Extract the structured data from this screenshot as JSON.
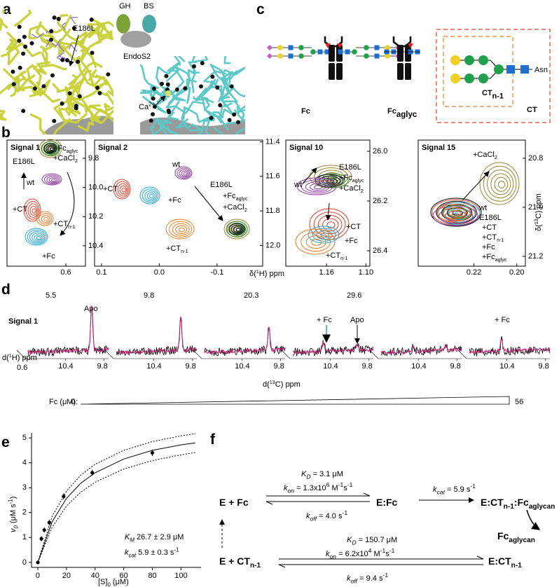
{
  "a": {
    "label": "a",
    "gh": "GH",
    "bs": "BS",
    "endos2": "EndoS2",
    "mutation": "E186L",
    "calcium": [
      {
        "t": "Ca"
      },
      {
        "t": "2+",
        "s": "sup"
      }
    ]
  },
  "b": {
    "label": "b",
    "x_axis_label": [
      {
        "t": "δ("
      },
      {
        "t": "1",
        "s": "sup"
      },
      {
        "t": "H) ppm"
      }
    ],
    "y_axis_label": [
      {
        "t": "δ("
      },
      {
        "t": "13",
        "s": "sup"
      },
      {
        "t": "C) ppm"
      }
    ],
    "spectra": [
      {
        "title": "Signal 1",
        "xlim": [
          0.72,
          0.56
        ],
        "ylim": [
          9.675,
          10.54
        ],
        "xticks": [
          0.6
        ],
        "yticks": [
          9.8,
          {
            "value": 10,
            "label": "10.0"
          },
          10.2,
          10.4
        ],
        "labels": [
          {
            "text": [
              {
                "t": "+Fc"
              },
              {
                "t": "aglyc",
                "s": "sub"
              }
            ],
            "color": "#2a9a3a"
          },
          {
            "text": [
              {
                "t": "+CaCl"
              },
              {
                "t": "2",
                "s": "sub"
              }
            ],
            "color": "#9a8530"
          },
          {
            "text": "E186L",
            "color": "#000000"
          },
          {
            "text": "wt",
            "color": "#8d3ea0"
          },
          {
            "text": "+CT",
            "color": "#e8402a"
          },
          {
            "text": [
              {
                "t": "+CT"
              },
              {
                "t": "n-1",
                "s": "sub"
              }
            ],
            "color": "#f07c22"
          },
          {
            "text": "+Fc",
            "color": "#1fa8d8"
          }
        ]
      },
      {
        "title": "Signal 2",
        "xlim": [
          0.112,
          -0.179
        ],
        "ylim": [
          11.39,
          12.12
        ],
        "xticks": [
          0.1,
          {
            "value": 0,
            "label": "0.0"
          },
          -0.1
        ],
        "yticks": [
          11.4,
          11.6,
          11.8,
          {
            "value": 12,
            "label": "12.0"
          }
        ],
        "labels": [
          {
            "text": "wt",
            "color": "#8d3ea0"
          },
          {
            "text": "+CT",
            "color": "#e8402a"
          },
          {
            "text": "+Fc",
            "color": "#1fa8d8"
          },
          {
            "text": "E186L",
            "color": "#000000"
          },
          {
            "text": [
              {
                "t": "+Fc"
              },
              {
                "t": "aglyc",
                "s": "sub"
              }
            ],
            "color": "#2a9a3a"
          },
          {
            "text": [
              {
                "t": "+CaCl"
              },
              {
                "t": "2",
                "s": "sub"
              }
            ],
            "color": "#9a8530"
          },
          {
            "text": [
              {
                "t": "+CT"
              },
              {
                "t": "n-1",
                "s": "sub"
              }
            ],
            "color": "#f07c22"
          }
        ]
      },
      {
        "title": "Signal 10",
        "xlim": [
          1.222,
          1.094
        ],
        "ylim": [
          25.955,
          26.462
        ],
        "xticks": [
          1.16,
          {
            "value": 1.1,
            "label": "1.10"
          }
        ],
        "yticks": [
          {
            "value": 26,
            "label": "26.0"
          },
          26.2,
          26.4
        ],
        "labels": [
          {
            "text": "E186L",
            "color": "#000000"
          },
          {
            "text": [
              {
                "t": "+Fc"
              },
              {
                "t": "aglyc",
                "s": "sub"
              }
            ],
            "color": "#2a9a3a"
          },
          {
            "text": [
              {
                "t": "+CaCl"
              },
              {
                "t": "2",
                "s": "sub"
              }
            ],
            "color": "#9a8530"
          },
          {
            "text": "wt",
            "color": "#8d3ea0"
          },
          {
            "text": "+CT",
            "color": "#e8402a"
          },
          {
            "text": "+Fc",
            "color": "#1fa8d8"
          },
          {
            "text": [
              {
                "t": "+CT"
              },
              {
                "t": "n-1",
                "s": "sub"
              }
            ],
            "color": "#f07c22"
          }
        ]
      },
      {
        "title": "Signal 15",
        "xlim": [
          0.246,
          0.196
        ],
        "ylim": [
          20.726,
          21.24
        ],
        "xticks": [
          0.22,
          {
            "value": 0.2,
            "label": "0.20"
          }
        ],
        "yticks": [
          20.8,
          {
            "value": 21,
            "label": "21.0"
          },
          21.2
        ],
        "labels": [
          {
            "text": [
              {
                "t": "+CaCl"
              },
              {
                "t": "2",
                "s": "sub"
              }
            ],
            "color": "#9a8530"
          },
          {
            "text": "wt",
            "color": "#8d3ea0"
          },
          {
            "text": "E186L",
            "color": "#000000"
          },
          {
            "text": "+CT",
            "color": "#e8402a"
          },
          {
            "text": [
              {
                "t": "+CT"
              },
              {
                "t": "n-1",
                "s": "sub"
              }
            ],
            "color": "#f07c22"
          },
          {
            "text": "+Fc",
            "color": "#1fa8d8"
          },
          {
            "text": [
              {
                "t": "+Fc"
              },
              {
                "t": "aglyc",
                "s": "sub"
              }
            ],
            "color": "#2a9a3a"
          }
        ]
      }
    ]
  },
  "c": {
    "label": "c",
    "fc": "Fc",
    "fc_aglyc": [
      {
        "t": "Fc"
      },
      {
        "t": "aglyc",
        "s": "sub"
      }
    ],
    "ct_n1": [
      {
        "t": "CT"
      },
      {
        "t": "n-1",
        "s": "sub"
      }
    ],
    "ct": "CT",
    "asn": "Asn"
  },
  "d": {
    "label": "d",
    "concentrations": [
      5.5,
      9.8,
      20.3,
      29.6
    ],
    "signal": "Signal 1",
    "peak_labels": [
      {
        "text": "Apo",
        "color": "#000000"
      },
      {
        "text": "+ Fc",
        "color": "#1fa8d8"
      },
      {
        "text": "Apo",
        "color": "#000000"
      },
      {
        "text": "+ Fc",
        "color": "#1fa8d8"
      }
    ],
    "x_ticks": [
      10.4,
      9.8
    ],
    "h_axis_label": [
      {
        "t": "d("
      },
      {
        "t": "1",
        "s": "sup"
      },
      {
        "t": "H) ppm"
      }
    ],
    "h_tick": 0.6,
    "c_axis_label": [
      {
        "t": "d("
      },
      {
        "t": "13",
        "s": "sup"
      },
      {
        "t": "C) ppm"
      }
    ],
    "fc_label": "Fc (μM):",
    "fc_range": [
      0,
      56
    ],
    "trace_colors": [
      "#000000",
      "#c2186b"
    ]
  },
  "e": {
    "label": "e",
    "type": "scatter",
    "x_label": [
      {
        "t": "[S]"
      },
      {
        "t": "0",
        "s": "sub"
      },
      {
        "t": " (μM)"
      }
    ],
    "y_label": [
      {
        "t": "v",
        "s": "i"
      },
      {
        "t": "0",
        "s": "isub"
      },
      {
        "t": " (μM s"
      },
      {
        "t": "-1",
        "s": "sup"
      },
      {
        "t": ")"
      }
    ],
    "xlim": [
      -4.4,
      114
    ],
    "ylim": [
      -0.2,
      5.2
    ],
    "xticks": [
      0,
      20,
      40,
      60,
      80,
      100
    ],
    "yticks": [
      0,
      1,
      2,
      3,
      4,
      5
    ],
    "x": [
      0,
      2.5,
      4.5,
      8,
      18,
      38,
      80
    ],
    "values": [
      0,
      0.95,
      1.3,
      1.6,
      2.65,
      3.6,
      4.4
    ],
    "errors": [
      0,
      0.1,
      0.1,
      0.12,
      0.12,
      0.12,
      0.13
    ],
    "fit": {
      "x": [
        0,
        10,
        20,
        30,
        40,
        60,
        80,
        100,
        110
      ],
      "values": [
        0,
        1.63,
        2.57,
        3.18,
        3.6,
        4.15,
        4.5,
        4.72,
        4.8
      ],
      "upper": [
        0,
        1.85,
        2.86,
        3.5,
        3.94,
        4.5,
        4.85,
        5.08,
        5.17
      ],
      "lower": [
        0,
        1.41,
        2.26,
        2.82,
        3.22,
        3.75,
        4.09,
        4.32,
        4.41
      ]
    },
    "km": [
      {
        "t": "K",
        "s": "i"
      },
      {
        "t": "M",
        "s": "isub"
      },
      {
        "t": " 26.7 ± 2.9 μM"
      }
    ],
    "kcat": [
      {
        "t": "k",
        "s": "i"
      },
      {
        "t": "cat",
        "s": "isub"
      },
      {
        "t": "  5.9 ± 0.3 s"
      },
      {
        "t": "-1",
        "s": "sup"
      }
    ]
  },
  "f": {
    "label": "f",
    "species": [
      [
        {
          "t": "E + Fc"
        }
      ],
      [
        {
          "t": "E:Fc"
        }
      ],
      [
        {
          "t": "E:CT"
        },
        {
          "t": "n-1",
          "s": "sub"
        },
        {
          "t": ":Fc"
        },
        {
          "t": "aglycan",
          "s": "sub"
        }
      ],
      [
        {
          "t": "Fc"
        },
        {
          "t": "aglycan",
          "s": "sub"
        }
      ],
      [
        {
          "t": "E + CT"
        },
        {
          "t": "n-1",
          "s": "sub"
        }
      ],
      [
        {
          "t": "E:CT"
        },
        {
          "t": "n-1",
          "s": "sub"
        }
      ]
    ],
    "constants": [
      [
        {
          "t": "K",
          "s": "i"
        },
        {
          "t": "D",
          "s": "isub"
        },
        {
          "t": " = 3.1 μM"
        }
      ],
      [
        {
          "t": "k",
          "s": "i"
        },
        {
          "t": "on",
          "s": "isub"
        },
        {
          "t": " = 1.3x10"
        },
        {
          "t": "6",
          "s": "sup"
        },
        {
          "t": " M"
        },
        {
          "t": "-1",
          "s": "sup"
        },
        {
          "t": "s"
        },
        {
          "t": "-1",
          "s": "sup"
        }
      ],
      [
        {
          "t": "k",
          "s": "i"
        },
        {
          "t": "off",
          "s": "isub"
        },
        {
          "t": " = 4.0 s"
        },
        {
          "t": "-1",
          "s": "sup"
        }
      ],
      [
        {
          "t": "k",
          "s": "i"
        },
        {
          "t": "cat",
          "s": "isub"
        },
        {
          "t": " = 5.9 s"
        },
        {
          "t": "-1",
          "s": "sup"
        }
      ],
      [
        {
          "t": "K",
          "s": "i"
        },
        {
          "t": "D",
          "s": "isub"
        },
        {
          "t": " = 150.7 μM"
        }
      ],
      [
        {
          "t": "k",
          "s": "i"
        },
        {
          "t": "on",
          "s": "isub"
        },
        {
          "t": " = 6.2x10"
        },
        {
          "t": "4",
          "s": "sup"
        },
        {
          "t": " M"
        },
        {
          "t": "-1",
          "s": "sup"
        },
        {
          "t": "s"
        },
        {
          "t": "-1",
          "s": "sup"
        }
      ],
      [
        {
          "t": "k",
          "s": "i"
        },
        {
          "t": "off",
          "s": "isub"
        },
        {
          "t": " = 9.4 s"
        },
        {
          "t": "-1",
          "s": "sup"
        }
      ]
    ]
  }
}
